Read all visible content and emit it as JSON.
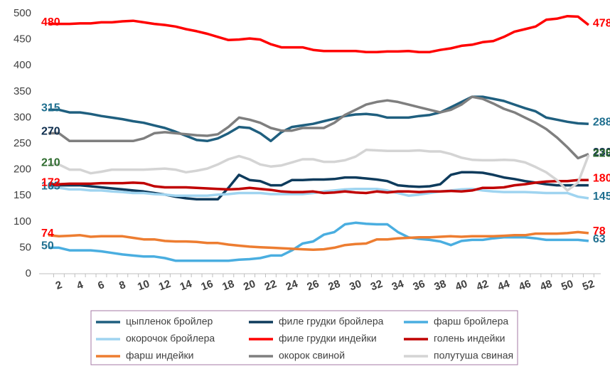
{
  "chart_data": {
    "type": "line",
    "categories": [
      null,
      2,
      null,
      4,
      null,
      6,
      null,
      8,
      null,
      10,
      null,
      12,
      null,
      14,
      null,
      16,
      null,
      18,
      null,
      20,
      null,
      22,
      null,
      24,
      null,
      26,
      null,
      28,
      null,
      30,
      null,
      32,
      null,
      34,
      null,
      36,
      null,
      38,
      null,
      40,
      null,
      42,
      null,
      44,
      null,
      46,
      null,
      48,
      null,
      50,
      null,
      52
    ],
    "ylim": [
      0,
      500
    ],
    "yticks": [
      0,
      50,
      100,
      150,
      200,
      250,
      300,
      350,
      400,
      450,
      500
    ],
    "grid": false,
    "series": [
      {
        "name": "цыпленок бройлер",
        "color": "#1f5f7f",
        "end_labels": true,
        "label_color": "#1f6f8f",
        "values": [
          315,
          315,
          310,
          310,
          307,
          303,
          300,
          297,
          293,
          290,
          285,
          280,
          273,
          265,
          257,
          255,
          260,
          270,
          282,
          280,
          270,
          255,
          272,
          282,
          285,
          288,
          293,
          298,
          303,
          306,
          307,
          305,
          300,
          300,
          300,
          303,
          305,
          310,
          320,
          330,
          340,
          340,
          336,
          332,
          325,
          318,
          312,
          300,
          296,
          292,
          289,
          288
        ]
      },
      {
        "name": "филе грудки бройлера",
        "color": "#0e3b5c",
        "values": [
          170,
          170,
          170,
          170,
          168,
          166,
          164,
          162,
          160,
          158,
          155,
          152,
          148,
          145,
          143,
          143,
          143,
          165,
          190,
          180,
          178,
          170,
          170,
          180,
          180,
          181,
          181,
          182,
          185,
          185,
          183,
          181,
          178,
          170,
          168,
          167,
          168,
          172,
          190,
          195,
          195,
          194,
          190,
          185,
          182,
          178,
          175,
          172,
          170,
          170,
          170,
          170
        ]
      },
      {
        "name": "фарш бройлера",
        "color": "#4aaee0",
        "end_labels": true,
        "label_color": "#1f6f8f",
        "values": [
          50,
          50,
          45,
          45,
          45,
          43,
          40,
          37,
          35,
          33,
          33,
          30,
          25,
          25,
          25,
          25,
          25,
          25,
          27,
          28,
          30,
          35,
          35,
          45,
          58,
          62,
          75,
          80,
          95,
          98,
          96,
          95,
          95,
          80,
          70,
          67,
          65,
          62,
          55,
          63,
          65,
          65,
          68,
          70,
          70,
          70,
          68,
          65,
          65,
          65,
          65,
          63
        ]
      },
      {
        "name": "окорочок бройлера",
        "color": "#9fd4f0",
        "end_labels": true,
        "label_color": "#1f6f8f",
        "values": [
          165,
          165,
          162,
          162,
          160,
          160,
          158,
          157,
          155,
          155,
          153,
          152,
          150,
          150,
          150,
          150,
          152,
          153,
          155,
          155,
          155,
          153,
          153,
          153,
          153,
          155,
          158,
          160,
          162,
          163,
          163,
          163,
          160,
          155,
          150,
          152,
          155,
          158,
          160,
          162,
          163,
          160,
          158,
          157,
          157,
          157,
          156,
          155,
          155,
          155,
          148,
          145
        ]
      },
      {
        "name": "филе грудки индейки",
        "color": "#ff0000",
        "end_labels": true,
        "label_color": "#ff0000",
        "values": [
          480,
          480,
          480,
          481,
          481,
          483,
          483,
          485,
          486,
          483,
          480,
          478,
          475,
          470,
          466,
          461,
          455,
          449,
          450,
          452,
          450,
          441,
          435,
          435,
          435,
          430,
          428,
          428,
          428,
          428,
          426,
          426,
          427,
          427,
          428,
          426,
          426,
          430,
          433,
          438,
          440,
          445,
          447,
          455,
          465,
          470,
          475,
          488,
          490,
          495,
          494,
          478
        ]
      },
      {
        "name": "голень индейки",
        "color": "#c00000",
        "end_labels": true,
        "label_color": "#ff0000",
        "values": [
          172,
          172,
          173,
          173,
          173,
          174,
          174,
          174,
          175,
          174,
          168,
          166,
          166,
          166,
          165,
          164,
          163,
          162,
          163,
          165,
          163,
          161,
          158,
          157,
          157,
          158,
          155,
          156,
          158,
          156,
          155,
          158,
          156,
          158,
          158,
          157,
          158,
          158,
          159,
          158,
          160,
          165,
          165,
          166,
          170,
          172,
          175,
          177,
          178,
          178,
          180,
          180
        ]
      },
      {
        "name": "фарш индейки",
        "color": "#ed7d31",
        "end_labels": true,
        "label_color": "#ff0000",
        "values": [
          74,
          72,
          73,
          74,
          71,
          72,
          72,
          72,
          69,
          66,
          66,
          63,
          62,
          62,
          61,
          59,
          59,
          56,
          54,
          52,
          51,
          50,
          49,
          48,
          47,
          46,
          47,
          50,
          55,
          57,
          58,
          66,
          66,
          68,
          69,
          70,
          70,
          71,
          72,
          71,
          72,
          72,
          72,
          73,
          74,
          74,
          77,
          77,
          77,
          78,
          80,
          78
        ]
      },
      {
        "name": "окорок свиной",
        "color": "#7f7f7f",
        "end_labels": true,
        "label_color": "#0e2e4e",
        "values": [
          270,
          270,
          255,
          255,
          255,
          255,
          255,
          255,
          255,
          260,
          270,
          272,
          270,
          268,
          266,
          265,
          268,
          282,
          300,
          296,
          290,
          280,
          275,
          275,
          280,
          280,
          280,
          290,
          305,
          315,
          325,
          330,
          333,
          330,
          325,
          320,
          315,
          310,
          315,
          325,
          340,
          336,
          327,
          317,
          310,
          300,
          290,
          278,
          262,
          243,
          222,
          230
        ]
      },
      {
        "name": "полутуша свиная",
        "color": "#d4d4d4",
        "end_labels": true,
        "label_color": "#2e6b2e",
        "values": [
          210,
          210,
          200,
          200,
          193,
          196,
          200,
          200,
          200,
          200,
          201,
          202,
          200,
          195,
          198,
          202,
          210,
          220,
          226,
          220,
          210,
          206,
          208,
          214,
          220,
          220,
          215,
          215,
          218,
          225,
          238,
          237,
          236,
          236,
          236,
          237,
          235,
          235,
          230,
          223,
          219,
          218,
          218,
          219,
          218,
          214,
          205,
          195,
          180,
          160,
          175,
          228
        ]
      }
    ]
  }
}
